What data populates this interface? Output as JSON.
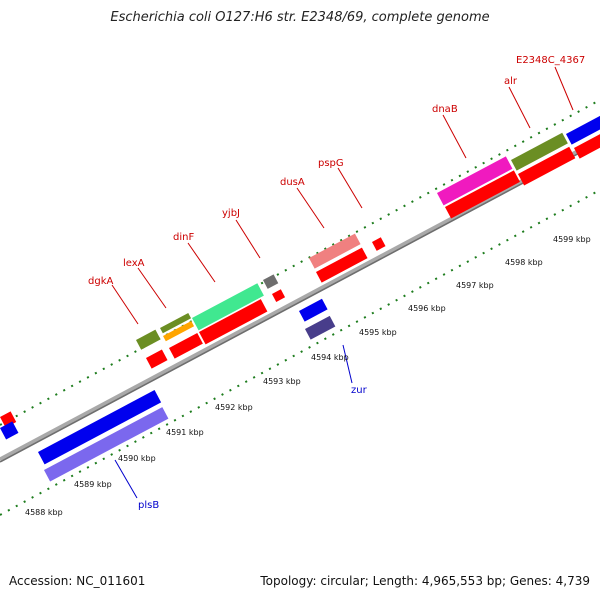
{
  "title": "Escherichia coli O127:H6 str. E2348/69, complete genome",
  "footer": {
    "accession": "Accession: NC_011601",
    "summary": "Topology: circular; Length: 4,965,553 bp; Genes: 4,739"
  },
  "colors": {
    "backbone": "#8c8c8c",
    "tick_marks": "#1e7d1e",
    "top_label": "#cc0000",
    "bottom_label": "#0000cc",
    "cds_red": "#ff0000"
  },
  "scale_ticks": [
    {
      "label": "4588 kbp"
    },
    {
      "label": "4589 kbp"
    },
    {
      "label": "4590 kbp"
    },
    {
      "label": "4591 kbp"
    },
    {
      "label": "4592 kbp"
    },
    {
      "label": "4593 kbp"
    },
    {
      "label": "4594 kbp"
    },
    {
      "label": "4595 kbp"
    },
    {
      "label": "4596 kbp"
    },
    {
      "label": "4597 kbp"
    },
    {
      "label": "4598 kbp"
    },
    {
      "label": "4599 kbp"
    }
  ],
  "gene_labels": [
    {
      "name": "dgkA",
      "strand": "top"
    },
    {
      "name": "lexA",
      "strand": "top"
    },
    {
      "name": "dinF",
      "strand": "top"
    },
    {
      "name": "yjbJ",
      "strand": "top"
    },
    {
      "name": "dusA",
      "strand": "top"
    },
    {
      "name": "pspG",
      "strand": "top"
    },
    {
      "name": "dnaB",
      "strand": "top"
    },
    {
      "name": "alr",
      "strand": "top"
    },
    {
      "name": "E2348C_4367",
      "strand": "top"
    },
    {
      "name": "zur",
      "strand": "bottom"
    },
    {
      "name": "plsB",
      "strand": "bottom"
    }
  ]
}
